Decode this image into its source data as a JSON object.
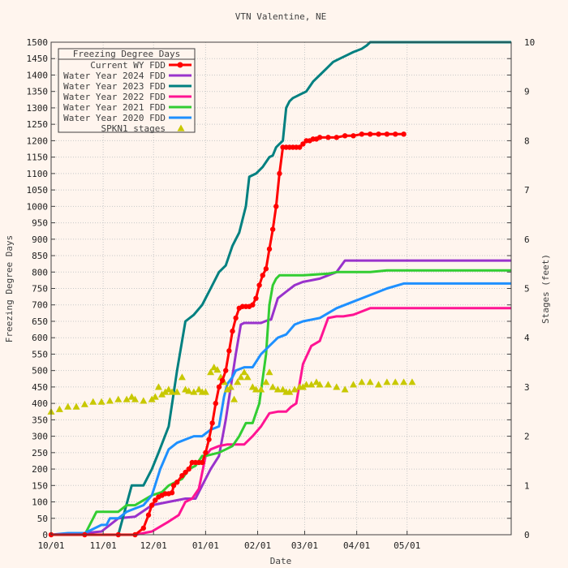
{
  "chart_data": {
    "type": "line",
    "title": "VTN Valentine, NE",
    "xlabel": "Date",
    "ylabel": "Freezing Degree Days",
    "y2label": "Stages (feet)",
    "xlim": [
      0,
      274
    ],
    "ylim": [
      0,
      1500
    ],
    "y2lim": [
      0,
      10
    ],
    "grid": true,
    "legend_placement": "top-left",
    "legend_title": "Freezing Degree Days",
    "x_ticks": [
      {
        "label": "10/01",
        "day": 0
      },
      {
        "label": "11/01",
        "day": 31
      },
      {
        "label": "12/01",
        "day": 61
      },
      {
        "label": "01/01",
        "day": 92
      },
      {
        "label": "02/01",
        "day": 123
      },
      {
        "label": "03/01",
        "day": 151
      },
      {
        "label": "04/01",
        "day": 182
      },
      {
        "label": "05/01",
        "day": 212
      }
    ],
    "y_ticks": [
      0,
      50,
      100,
      150,
      200,
      250,
      300,
      350,
      400,
      450,
      500,
      550,
      600,
      650,
      700,
      750,
      800,
      850,
      900,
      950,
      1000,
      1050,
      1100,
      1150,
      1200,
      1250,
      1300,
      1350,
      1400,
      1450,
      1500
    ],
    "y2_ticks": [
      0,
      1,
      2,
      3,
      4,
      5,
      6,
      7,
      8,
      9,
      10
    ],
    "series": [
      {
        "name": "Current WY FDD",
        "color": "#ff0000",
        "marker": "circle",
        "x": [
          0,
          20,
          40,
          50,
          55,
          58,
          60,
          62,
          64,
          66,
          68,
          70,
          72,
          73,
          75,
          78,
          80,
          82,
          84,
          86,
          88,
          90,
          92,
          94,
          96,
          98,
          100,
          102,
          104,
          106,
          108,
          110,
          112,
          114,
          116,
          118,
          120,
          122,
          124,
          126,
          128,
          130,
          132,
          134,
          136,
          138,
          140,
          142,
          144,
          146,
          148,
          150,
          152,
          154,
          156,
          158,
          160,
          165,
          170,
          175,
          180,
          185,
          190,
          195,
          200,
          205,
          210
        ],
        "y": [
          0,
          0,
          0,
          0,
          20,
          60,
          90,
          105,
          115,
          120,
          125,
          125,
          128,
          150,
          160,
          180,
          190,
          200,
          220,
          220,
          220,
          220,
          250,
          290,
          340,
          400,
          450,
          470,
          500,
          560,
          620,
          660,
          690,
          695,
          695,
          695,
          700,
          720,
          760,
          790,
          810,
          870,
          930,
          1000,
          1100,
          1180,
          1180,
          1180,
          1180,
          1180,
          1180,
          1190,
          1200,
          1200,
          1205,
          1205,
          1210,
          1210,
          1210,
          1215,
          1215,
          1220,
          1220,
          1220,
          1220,
          1220,
          1220
        ]
      },
      {
        "name": "Water Year 2024 FDD",
        "color": "#9932cc",
        "x": [
          0,
          15,
          20,
          30,
          40,
          50,
          60,
          70,
          80,
          86,
          90,
          95,
          100,
          104,
          107,
          110,
          113,
          115,
          120,
          125,
          130,
          131,
          135,
          140,
          145,
          150,
          160,
          170,
          175,
          180,
          190,
          200,
          210,
          220,
          240,
          260,
          274
        ],
        "y": [
          0,
          0,
          5,
          10,
          50,
          55,
          90,
          100,
          110,
          110,
          150,
          200,
          240,
          350,
          450,
          550,
          640,
          645,
          645,
          645,
          655,
          655,
          720,
          740,
          760,
          770,
          780,
          800,
          835,
          835,
          835,
          835,
          835,
          835,
          835,
          835,
          835
        ]
      },
      {
        "name": "Water Year 2023 FDD",
        "color": "#008080",
        "x": [
          0,
          30,
          40,
          48,
          55,
          60,
          64,
          70,
          75,
          80,
          85,
          90,
          95,
          100,
          104,
          108,
          112,
          116,
          118,
          122,
          126,
          130,
          132,
          134,
          136,
          138,
          140,
          142,
          144,
          146,
          148,
          152,
          156,
          160,
          164,
          168,
          172,
          176,
          180,
          185,
          188,
          190,
          200,
          274
        ],
        "y": [
          0,
          0,
          0,
          150,
          150,
          200,
          250,
          330,
          500,
          650,
          670,
          700,
          750,
          800,
          820,
          880,
          920,
          1000,
          1090,
          1100,
          1120,
          1150,
          1155,
          1180,
          1190,
          1200,
          1300,
          1320,
          1330,
          1335,
          1340,
          1350,
          1380,
          1400,
          1420,
          1440,
          1450,
          1460,
          1470,
          1480,
          1490,
          1500,
          1500,
          1500
        ]
      },
      {
        "name": "Water Year 2022 FDD",
        "color": "#ff1493",
        "x": [
          0,
          10,
          20,
          30,
          40,
          50,
          60,
          70,
          76,
          80,
          84,
          88,
          92,
          95,
          100,
          105,
          110,
          115,
          120,
          125,
          130,
          135,
          140,
          143,
          146,
          150,
          155,
          160,
          165,
          170,
          174,
          180,
          190,
          200,
          210,
          220,
          240,
          274
        ],
        "y": [
          0,
          0,
          0,
          0,
          0,
          0,
          10,
          40,
          60,
          100,
          110,
          140,
          240,
          260,
          270,
          275,
          275,
          275,
          300,
          330,
          370,
          375,
          375,
          390,
          400,
          520,
          575,
          590,
          660,
          665,
          665,
          670,
          690,
          690,
          690,
          690,
          690,
          690
        ]
      },
      {
        "name": "Water Year 2021 FDD",
        "color": "#32cd32",
        "x": [
          0,
          20,
          27,
          30,
          40,
          45,
          50,
          60,
          66,
          70,
          78,
          82,
          86,
          90,
          92,
          100,
          104,
          108,
          112,
          116,
          120,
          124,
          128,
          130,
          132,
          134,
          136,
          138,
          140,
          143,
          145,
          150,
          165,
          170,
          180,
          190,
          200,
          210,
          220,
          240,
          274
        ],
        "y": [
          0,
          0,
          70,
          70,
          70,
          90,
          90,
          120,
          130,
          150,
          170,
          200,
          210,
          240,
          240,
          250,
          260,
          270,
          300,
          340,
          340,
          400,
          550,
          700,
          760,
          780,
          790,
          790,
          790,
          790,
          790,
          790,
          795,
          800,
          800,
          800,
          805,
          805,
          805,
          805,
          805
        ]
      },
      {
        "name": "Water Year 2020 FDD",
        "color": "#1e90ff",
        "x": [
          0,
          10,
          20,
          30,
          33,
          35,
          40,
          45,
          50,
          55,
          60,
          65,
          70,
          75,
          80,
          85,
          90,
          95,
          100,
          103,
          105,
          108,
          110,
          115,
          120,
          125,
          130,
          135,
          140,
          145,
          150,
          160,
          170,
          180,
          190,
          200,
          210,
          220,
          240,
          274
        ],
        "y": [
          0,
          5,
          5,
          30,
          30,
          50,
          50,
          70,
          80,
          90,
          120,
          200,
          260,
          280,
          290,
          300,
          300,
          320,
          330,
          420,
          460,
          480,
          500,
          510,
          510,
          550,
          575,
          600,
          610,
          640,
          650,
          660,
          690,
          710,
          730,
          750,
          765,
          765,
          765,
          765
        ]
      },
      {
        "name": "SPKN1 stages",
        "color": "#c8c800",
        "marker": "triangle",
        "axis": "y2",
        "x": [
          0,
          5,
          10,
          15,
          20,
          25,
          30,
          35,
          40,
          45,
          48,
          50,
          55,
          60,
          62,
          64,
          66,
          68,
          70,
          72,
          75,
          78,
          80,
          82,
          85,
          88,
          90,
          92,
          95,
          97,
          99,
          101,
          103,
          105,
          107,
          109,
          111,
          113,
          115,
          117,
          120,
          122,
          125,
          128,
          130,
          132,
          135,
          138,
          140,
          142,
          145,
          148,
          150,
          152,
          155,
          158,
          160,
          165,
          170,
          175,
          180,
          185,
          190,
          195,
          200,
          205,
          210,
          215
        ],
        "y": [
          2.5,
          2.55,
          2.6,
          2.6,
          2.65,
          2.7,
          2.7,
          2.72,
          2.75,
          2.75,
          2.8,
          2.75,
          2.72,
          2.75,
          2.8,
          3.0,
          2.85,
          2.9,
          2.95,
          2.9,
          2.9,
          3.2,
          2.95,
          2.92,
          2.9,
          2.95,
          2.9,
          2.9,
          3.3,
          3.4,
          3.35,
          3.2,
          3.1,
          2.95,
          3.0,
          2.75,
          3.1,
          3.2,
          3.3,
          3.2,
          3.0,
          2.95,
          2.95,
          3.1,
          3.3,
          3.0,
          2.95,
          2.95,
          2.9,
          2.9,
          2.95,
          3.0,
          3.0,
          3.05,
          3.05,
          3.1,
          3.05,
          3.05,
          3.0,
          2.95,
          3.05,
          3.1,
          3.1,
          3.05,
          3.1,
          3.1,
          3.1,
          3.1
        ]
      }
    ]
  }
}
